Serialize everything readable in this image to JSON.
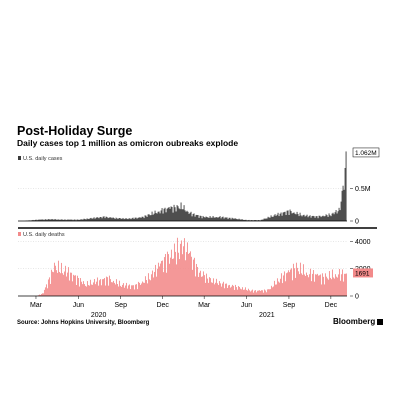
{
  "title": "Post-Holiday Surge",
  "subtitle": "Daily cases top 1 million as omicron oubreaks explode",
  "source": "Source: Johns Hopkins University, Bloomberg",
  "brand": "Bloomberg",
  "chart_data": [
    {
      "type": "bar",
      "series_label": "U.S. daily cases",
      "color": "#3a3a3a",
      "y_ticks": [
        0,
        500000
      ],
      "y_tick_labels": [
        "0",
        "0.5M"
      ],
      "ylim": [
        0,
        1100000
      ],
      "latest_value": 1062000,
      "latest_label": "1.062M",
      "x_dates": [
        "2020-02-01",
        "2020-03-01",
        "2020-04-01",
        "2020-05-01",
        "2020-06-01",
        "2020-07-01",
        "2020-07-25",
        "2020-08-15",
        "2020-09-15",
        "2020-10-15",
        "2020-11-15",
        "2020-12-15",
        "2021-01-10",
        "2021-02-01",
        "2021-03-01",
        "2021-04-01",
        "2021-05-01",
        "2021-06-01",
        "2021-07-01",
        "2021-08-01",
        "2021-09-01",
        "2021-10-01",
        "2021-11-01",
        "2021-12-01",
        "2021-12-20",
        "2022-01-03"
      ],
      "values": [
        0,
        20000,
        30000,
        23000,
        22000,
        50000,
        70000,
        52000,
        40000,
        60000,
        150000,
        220000,
        250000,
        120000,
        65000,
        70000,
        45000,
        15000,
        15000,
        100000,
        170000,
        95000,
        75000,
        110000,
        200000,
        1062000
      ]
    },
    {
      "type": "bar",
      "series_label": "U.S. daily deaths",
      "color": "#f28a8a",
      "y_ticks": [
        0,
        2000,
        4000
      ],
      "y_tick_labels": [
        "0",
        "2000",
        "4000"
      ],
      "ylim": [
        0,
        4400
      ],
      "latest_value": 1691,
      "latest_label": "1691",
      "x_dates": [
        "2020-03-01",
        "2020-03-15",
        "2020-04-10",
        "2020-04-20",
        "2020-05-15",
        "2020-06-15",
        "2020-07-10",
        "2020-08-05",
        "2020-09-01",
        "2020-10-01",
        "2020-11-01",
        "2020-12-01",
        "2021-01-12",
        "2021-01-25",
        "2021-02-15",
        "2021-03-15",
        "2021-04-15",
        "2021-05-15",
        "2021-06-15",
        "2021-07-15",
        "2021-08-15",
        "2021-09-15",
        "2021-10-15",
        "2021-11-15",
        "2021-12-15",
        "2022-01-03"
      ],
      "values": [
        0,
        200,
        2400,
        2200,
        1800,
        900,
        1200,
        1400,
        900,
        800,
        1500,
        2800,
        4100,
        3600,
        2000,
        1300,
        900,
        700,
        400,
        450,
        1500,
        2300,
        1800,
        1500,
        1800,
        1691
      ]
    }
  ],
  "x_axis": {
    "labels": [
      {
        "date": "2020-03-01",
        "label": "Mar"
      },
      {
        "date": "2020-06-01",
        "label": "Jun"
      },
      {
        "date": "2020-09-01",
        "label": "Sep"
      },
      {
        "date": "2020-12-01",
        "label": "Dec"
      },
      {
        "date": "2021-03-01",
        "label": "Mar"
      },
      {
        "date": "2021-06-01",
        "label": "Jun"
      },
      {
        "date": "2021-09-01",
        "label": "Sep"
      },
      {
        "date": "2021-12-01",
        "label": "Dec"
      }
    ],
    "year_labels": [
      {
        "date": "2020-07-15",
        "label": "2020"
      },
      {
        "date": "2021-07-15",
        "label": "2021"
      }
    ],
    "start": "2020-01-22",
    "end": "2022-01-05"
  }
}
